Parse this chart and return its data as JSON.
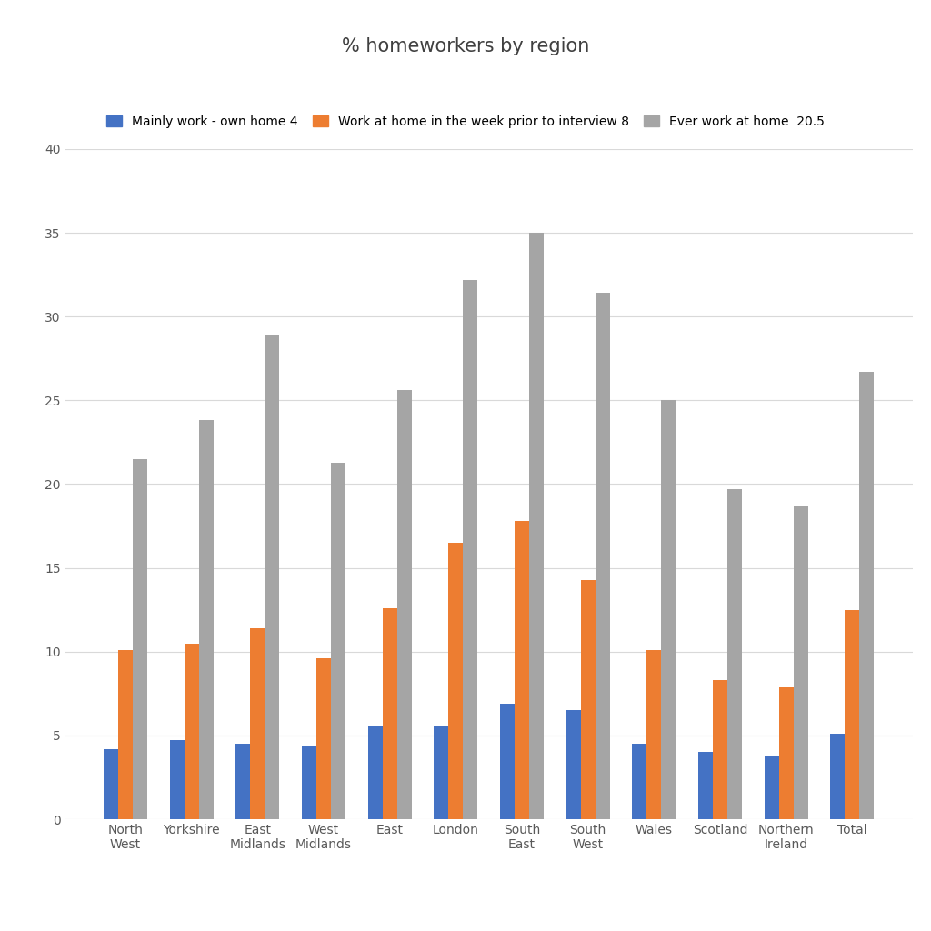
{
  "title": "% homeworkers by region",
  "categories": [
    "North\nWest",
    "Yorkshire",
    "East\nMidlands",
    "West\nMidlands",
    "East",
    "London",
    "South\nEast",
    "South\nWest",
    "Wales",
    "Scotland",
    "Northern\nIreland",
    "Total"
  ],
  "series": [
    {
      "name": "Mainly work - own home 4",
      "color": "#4472C4",
      "values": [
        4.2,
        4.7,
        4.5,
        4.4,
        5.6,
        5.6,
        6.9,
        6.5,
        4.5,
        4.0,
        3.8,
        5.1
      ]
    },
    {
      "name": "Work at home in the week prior to interview 8",
      "color": "#ED7D31",
      "values": [
        10.1,
        10.5,
        11.4,
        9.6,
        12.6,
        16.5,
        17.8,
        14.3,
        10.1,
        8.3,
        7.9,
        12.5
      ]
    },
    {
      "name": "Ever work at home  20.5",
      "color": "#A5A5A5",
      "values": [
        21.5,
        23.8,
        28.9,
        21.3,
        25.6,
        32.2,
        35.0,
        31.4,
        25.0,
        19.7,
        18.7,
        26.7
      ]
    }
  ],
  "ylim": [
    0,
    40
  ],
  "yticks": [
    0,
    5,
    10,
    15,
    20,
    25,
    30,
    35,
    40
  ],
  "background_color": "#FFFFFF",
  "grid_color": "#D9D9D9",
  "title_fontsize": 15,
  "legend_fontsize": 10,
  "tick_fontsize": 10,
  "bar_width": 0.22
}
